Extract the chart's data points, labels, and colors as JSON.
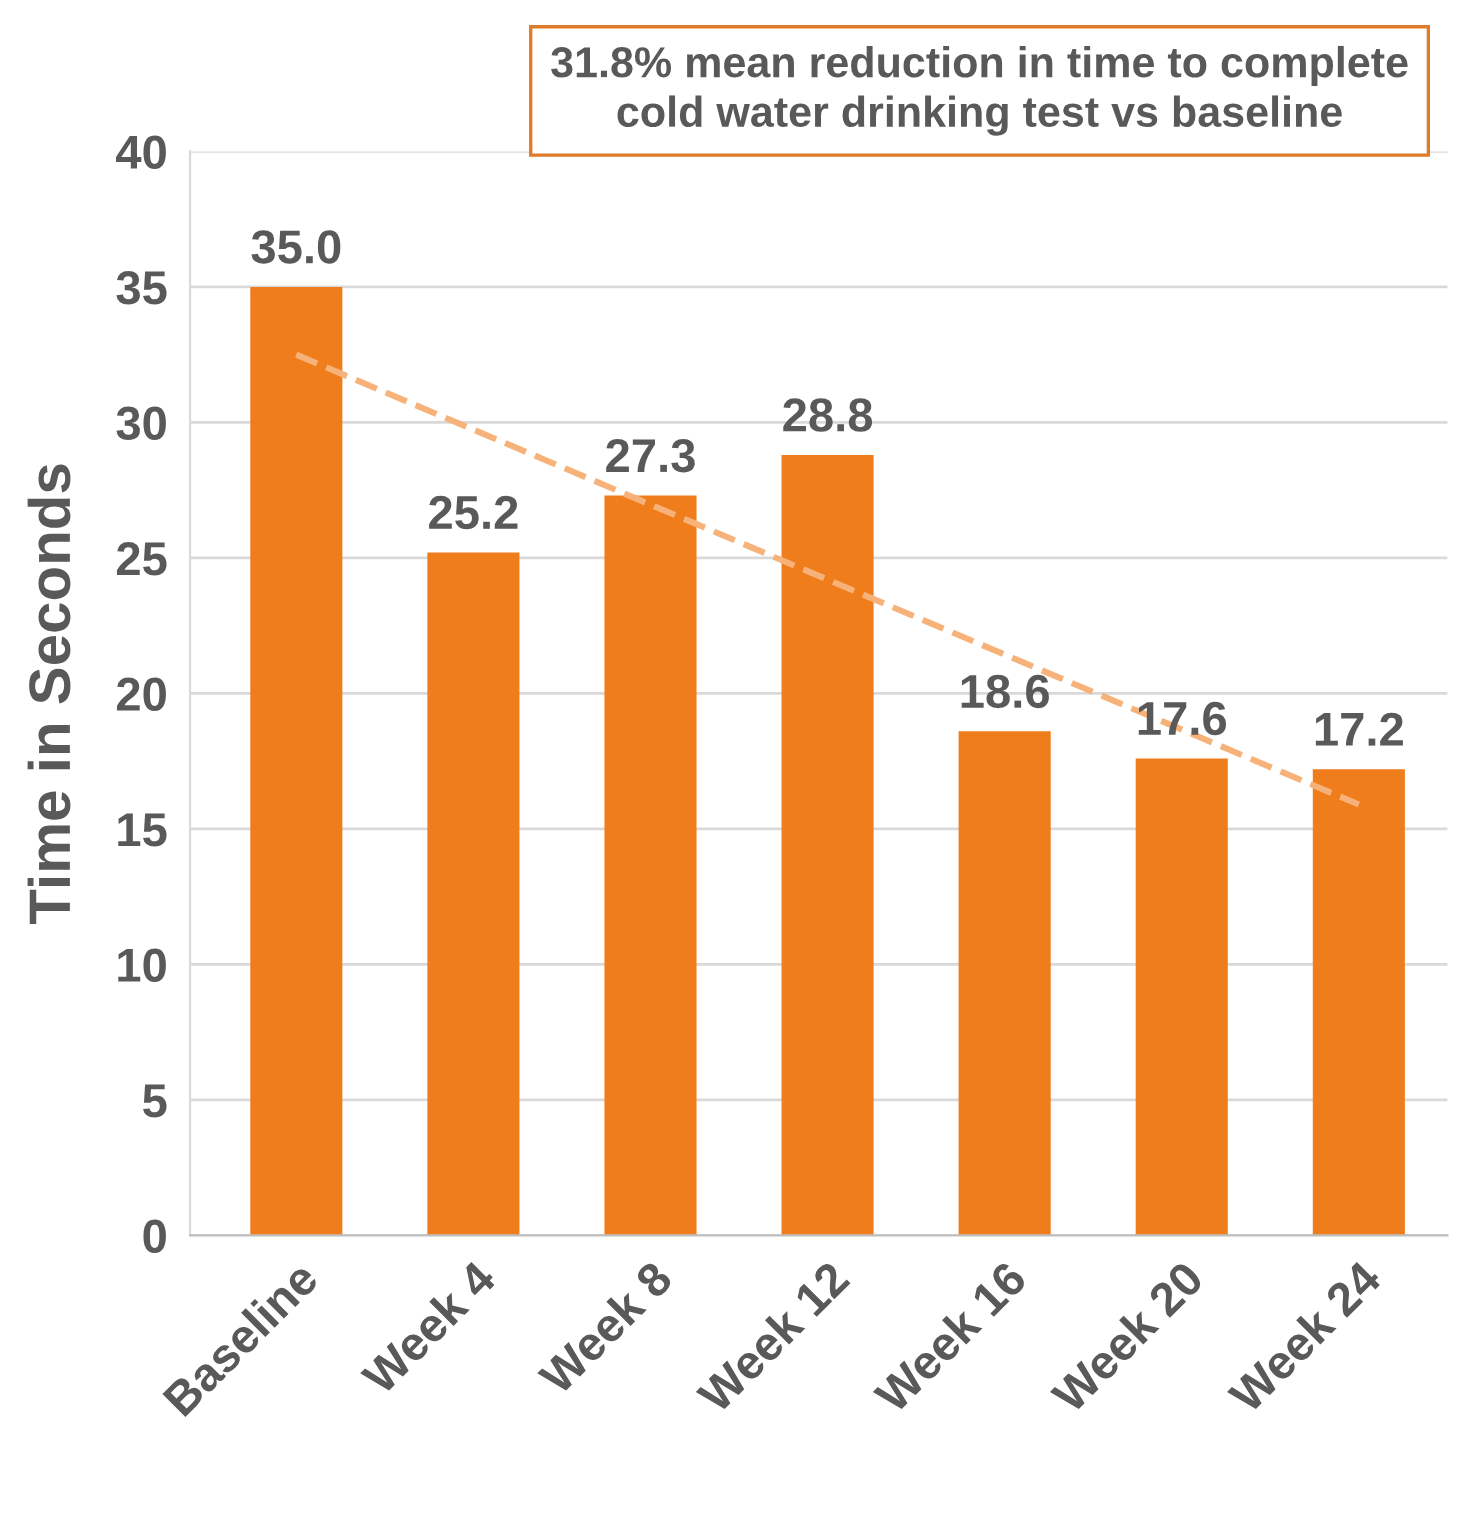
{
  "chart_data": {
    "type": "bar",
    "ylabel": "Time in Seconds",
    "annotations": [
      "31.8% mean reduction in time to complete\ncold water drinking test vs baseline"
    ],
    "categories": [
      "Baseline",
      "Week 4",
      "Week 8",
      "Week 12",
      "Week 16",
      "Week 20",
      "Week 24"
    ],
    "series": [
      {
        "color": "#f07d1c",
        "values": [
          35.0,
          25.2,
          27.3,
          28.8,
          18.6,
          17.6,
          17.2
        ],
        "value_labels": [
          "35.0",
          "25.2",
          "27.3",
          "28.8",
          "18.6",
          "17.6",
          "17.2"
        ]
      },
      {
        "type": "line",
        "color": "#f7b27a",
        "line_style": "dashed",
        "x": [
          "Baseline",
          "Week 24"
        ],
        "values": [
          32.5,
          15.9
        ]
      }
    ],
    "ylim": [
      0,
      40
    ],
    "yticks": [
      0,
      5,
      10,
      15,
      20,
      25,
      30,
      35,
      40
    ],
    "grid": "y"
  }
}
